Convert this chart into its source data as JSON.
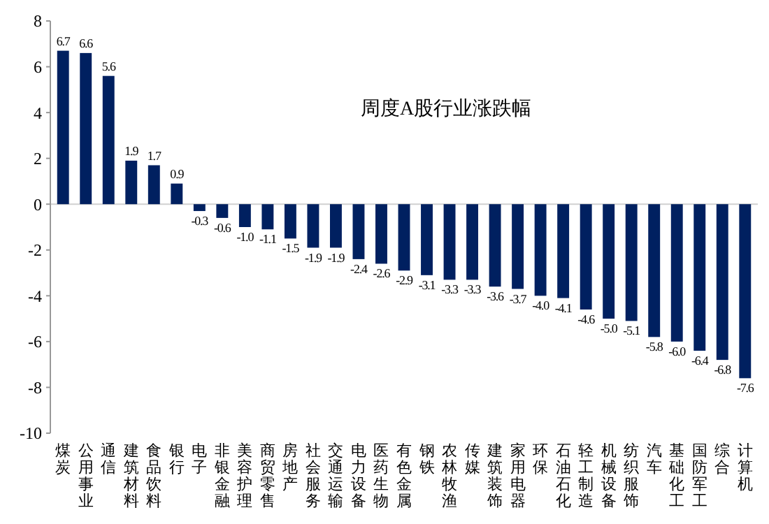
{
  "chart_data": {
    "type": "bar",
    "title": "周度A股行业涨跌幅",
    "categories": [
      "煤炭",
      "公用事业",
      "通信",
      "建筑材料",
      "食品饮料",
      "银行",
      "电子",
      "非银金融",
      "美容护理",
      "商贸零售",
      "房地产",
      "社会服务",
      "交通运输",
      "电力设备",
      "医药生物",
      "有色金属",
      "钢铁",
      "农林牧渔",
      "传媒",
      "建筑装饰",
      "家用电器",
      "环保",
      "石油石化",
      "轻工制造",
      "机械设备",
      "纺织服饰",
      "汽车",
      "基础化工",
      "国防军工",
      "综合",
      "计算机"
    ],
    "values": [
      6.7,
      6.6,
      5.6,
      1.9,
      1.7,
      0.9,
      -0.3,
      -0.6,
      -1.0,
      -1.1,
      -1.5,
      -1.9,
      -1.9,
      -2.4,
      -2.6,
      -2.9,
      -3.1,
      -3.3,
      -3.3,
      -3.6,
      -3.7,
      -4.0,
      -4.1,
      -4.6,
      -5.0,
      -5.1,
      -5.8,
      -6.0,
      -6.4,
      -6.8,
      -7.6
    ],
    "color": "#002060",
    "ylim": [
      -10,
      8
    ],
    "yticks": [
      -10,
      -8,
      -6,
      -4,
      -2,
      0,
      2,
      4,
      6,
      8
    ],
    "value_labels": [
      "6.7",
      "6.6",
      "5.6",
      "1.9",
      "1.7",
      "0.9",
      "-0.3",
      "-0.6",
      "-1.0",
      "-1.1",
      "-1.5",
      "-1.9",
      "-1.9",
      "-2.4",
      "-2.6",
      "-2.9",
      "-3.1",
      "-3.3",
      "-3.3",
      "-3.6",
      "-3.7",
      "-4.0",
      "-4.1",
      "-4.6",
      "-5.0",
      "-5.1",
      "-5.8",
      "-6.0",
      "-6.4",
      "-6.8",
      "-7.6"
    ]
  }
}
